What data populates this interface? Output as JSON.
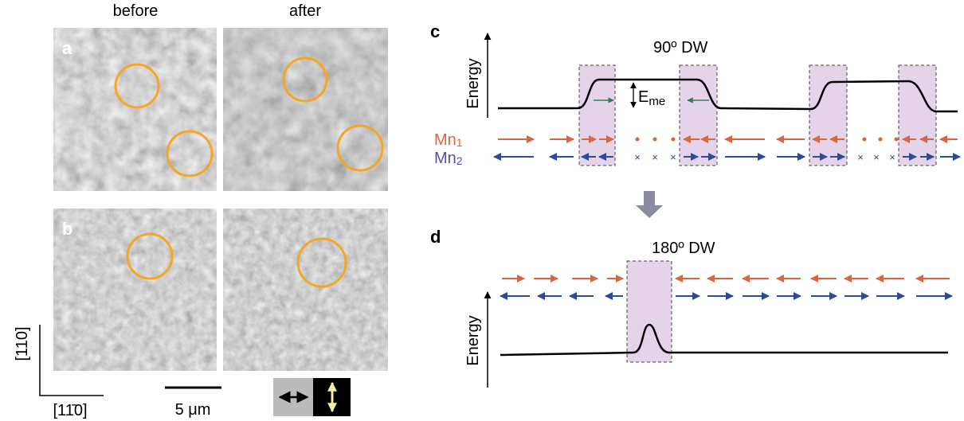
{
  "images": {
    "columns": [
      "before",
      "after"
    ],
    "rows": [
      "a",
      "b"
    ]
  },
  "orientation": {
    "vertical": "[110]",
    "horizontal": "[11̄0]"
  },
  "scale_bar": "5 μm",
  "panel_c": {
    "label": "c",
    "y_axis": "Energy",
    "title": "90º DW",
    "energy_label": {
      "base": "E",
      "sub": "me"
    },
    "sublattices": [
      {
        "base": "Mn",
        "sub": "1"
      },
      {
        "base": "Mn",
        "sub": "2"
      }
    ]
  },
  "panel_d": {
    "label": "d",
    "y_axis": "Energy",
    "title": "180º DW"
  }
}
